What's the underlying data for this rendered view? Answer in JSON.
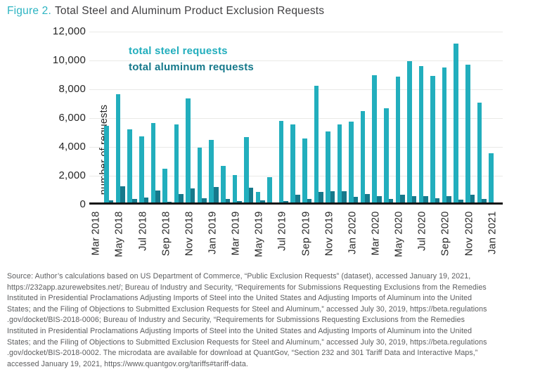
{
  "title": {
    "prefix": "Figure 2.",
    "text": "Total Steel and Aluminum Product Exclusion Requests"
  },
  "colors": {
    "steel": "#22aebd",
    "aluminum": "#16798b",
    "title_prefix": "#2db4c2",
    "title_text": "#414042",
    "grid": "#e9e9e7",
    "baseline": "#161616",
    "axis_text": "#262626",
    "source_text": "#5a5b5d"
  },
  "legend": {
    "steel_label": "total steel requests",
    "aluminum_label": "total aluminum requests"
  },
  "y_axis": {
    "label": "number of requests",
    "ticks": [
      "12,000",
      "10,000",
      "8,000",
      "6,000",
      "4,000",
      "2,000",
      "0"
    ]
  },
  "x_axis": {
    "tick_labels": [
      "Mar 2018",
      "May 2018",
      "Jul 2018",
      "Sep 2018",
      "Nov 2018",
      "Jan 2019",
      "Mar 2019",
      "May 2019",
      "Jul 2019",
      "Sep 2019",
      "Nov 2019",
      "Jan 2020",
      "Mar 2020",
      "May 2020",
      "Jul 2020",
      "Sep 2020",
      "Nov 2020",
      "Jan 2021"
    ]
  },
  "chart_data": {
    "type": "bar",
    "title": "Total Steel and Aluminum Product Exclusion Requests",
    "xlabel": "",
    "ylabel": "number of requests",
    "ylim": [
      0,
      12000
    ],
    "grid": true,
    "legend_position": "top-left-inside",
    "categories": [
      "Mar 2018",
      "Apr 2018",
      "May 2018",
      "Jun 2018",
      "Jul 2018",
      "Aug 2018",
      "Sep 2018",
      "Oct 2018",
      "Nov 2018",
      "Dec 2018",
      "Jan 2019",
      "Feb 2019",
      "Mar 2019",
      "Apr 2019",
      "May 2019",
      "Jun 2019",
      "Jul 2019",
      "Aug 2019",
      "Sep 2019",
      "Oct 2019",
      "Nov 2019",
      "Dec 2019",
      "Jan 2020",
      "Feb 2020",
      "Mar 2020",
      "Apr 2020",
      "May 2020",
      "Jun 2020",
      "Jul 2020",
      "Aug 2020",
      "Sep 2020",
      "Oct 2020",
      "Nov 2020",
      "Dec 2020",
      "Jan 2021"
    ],
    "series": [
      {
        "name": "total steel requests",
        "color": "#22aebd",
        "values": [
          100,
          5450,
          7650,
          5200,
          4750,
          5650,
          2500,
          5550,
          7350,
          3950,
          4470,
          2700,
          2050,
          4700,
          900,
          1880,
          5800,
          5580,
          4580,
          8250,
          5050,
          5550,
          5750,
          6500,
          9000,
          6700,
          8900,
          9950,
          9600,
          8950,
          9500,
          11150,
          9700,
          7050,
          3550
        ]
      },
      {
        "name": "total aluminum requests",
        "color": "#16798b",
        "values": [
          30,
          300,
          1250,
          400,
          500,
          1000,
          200,
          750,
          1100,
          450,
          1200,
          400,
          250,
          1150,
          300,
          80,
          250,
          700,
          380,
          900,
          930,
          950,
          550,
          750,
          580,
          380,
          680,
          600,
          600,
          430,
          600,
          330,
          680,
          380,
          130
        ]
      }
    ]
  },
  "source": {
    "lines": [
      "Source: Author’s calculations based on US Department of Commerce, “Public Exclusion Requests” (dataset), accessed January 19, 2021,",
      "https://232app.azurewebsites.net/; Bureau of Industry and Security, “Requirements for Submissions Requesting Exclusions from the Remedies",
      "Instituted in Presidential Proclamations Adjusting Imports of Steel into the United States and Adjusting Imports of Aluminum into the United",
      "States; and the Filing of Objections to Submitted Exclusion Requests for Steel and Aluminum,” accessed July 30, 2019, https://beta.regulations",
      ".gov/docket/BIS-2018-0006; Bureau of Industry and Security, “Requirements for Submissions Requesting Exclusions from the Remedies",
      "Instituted in Presidential Proclamations Adjusting Imports of Steel into the United States and Adjusting Imports of Aluminum into the United",
      "States; and the Filing of Objections to Submitted Exclusion Requests for Steel and Aluminum,” accessed July 30, 2019, https://beta.regulations",
      ".gov/docket/BIS-2018-0002. The microdata are available for download at QuantGov, “Section 232 and 301 Tariff Data and Interactive Maps,”",
      "accessed January 19, 2021, https://www.quantgov.org/tariffs#tariff-data."
    ]
  }
}
